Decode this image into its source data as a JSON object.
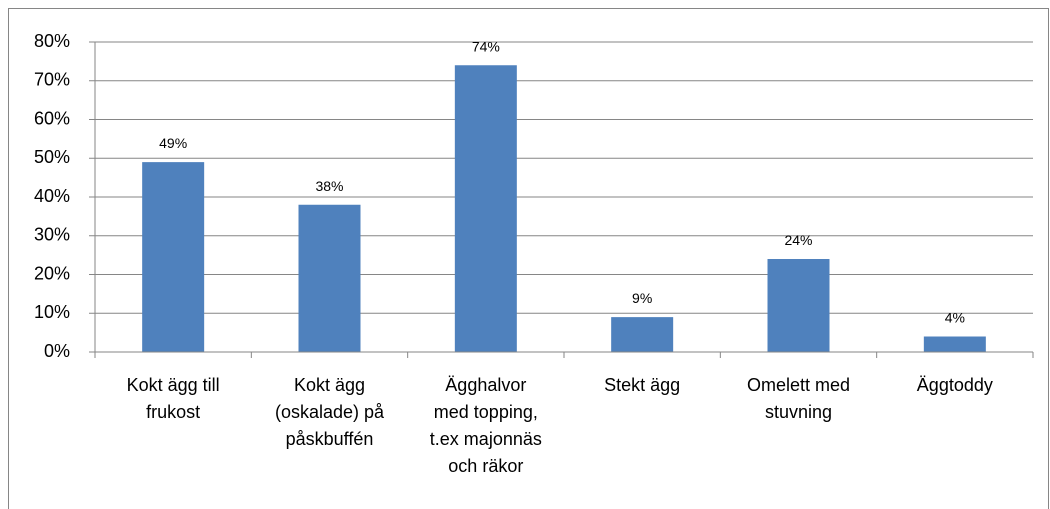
{
  "chart_data": {
    "type": "bar",
    "categories": [
      "Kokt ägg till frukost",
      "Kokt ägg (oskalade) på påskbuffén",
      "Ägghalvor med topping, t.ex majonnäs och räkor",
      "Stekt ägg",
      "Omelett med stuvning",
      "Äggtoddy"
    ],
    "values": [
      49,
      38,
      74,
      9,
      24,
      4
    ],
    "value_labels": [
      "49%",
      "38%",
      "74%",
      "9%",
      "24%",
      "4%"
    ],
    "color": "#4f81bd",
    "ylim": [
      0,
      80
    ],
    "yticks": [
      {
        "value": 0,
        "label": "0%"
      },
      {
        "value": 10,
        "label": "10%"
      },
      {
        "value": 20,
        "label": "20%"
      },
      {
        "value": 30,
        "label": "30%"
      },
      {
        "value": 40,
        "label": "40%"
      },
      {
        "value": 50,
        "label": "50%"
      },
      {
        "value": 60,
        "label": "60%"
      },
      {
        "value": 70,
        "label": "70%"
      },
      {
        "value": 80,
        "label": "80%"
      }
    ],
    "grid": true
  }
}
